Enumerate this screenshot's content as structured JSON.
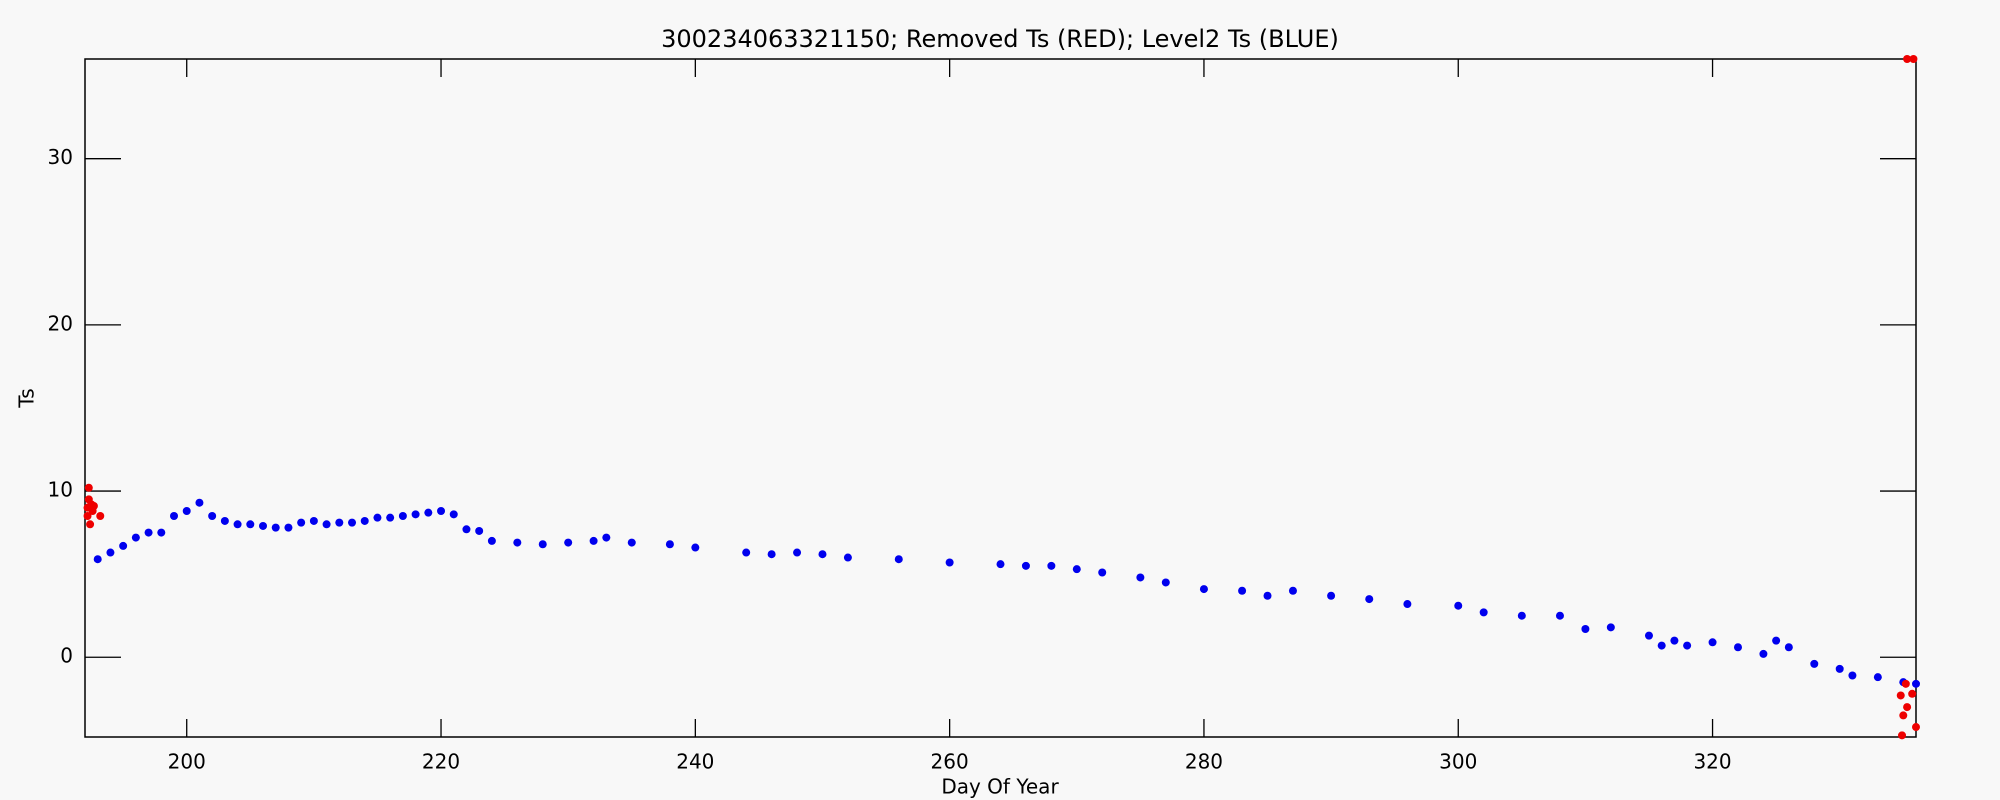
{
  "chart_data": {
    "type": "scatter",
    "title": "300234063321150; Removed Ts (RED); Level2 Ts (BLUE)",
    "x_label": "Day Of Year",
    "y_label": "Ts",
    "xlim": [
      192,
      336
    ],
    "ylim": [
      -4.8,
      36
    ],
    "xticks": [
      200,
      220,
      240,
      260,
      280,
      300,
      320
    ],
    "yticks": [
      0,
      10,
      20,
      30
    ],
    "series": [
      {
        "name": "Level2 Ts",
        "color": "#0000ee",
        "x": [
          193,
          194,
          195,
          196,
          197,
          198,
          199,
          200,
          201,
          202,
          203,
          204,
          205,
          206,
          207,
          208,
          209,
          210,
          211,
          212,
          213,
          214,
          215,
          216,
          217,
          218,
          219,
          220,
          221,
          222,
          223,
          224,
          226,
          228,
          230,
          232,
          233,
          235,
          238,
          240,
          244,
          246,
          248,
          250,
          252,
          256,
          260,
          264,
          266,
          268,
          270,
          272,
          275,
          277,
          280,
          283,
          285,
          287,
          290,
          293,
          296,
          300,
          302,
          305,
          308,
          310,
          312,
          315,
          316,
          317,
          318,
          320,
          322,
          324,
          325,
          326,
          328,
          330,
          331,
          333,
          335,
          336
        ],
        "values": [
          5.9,
          6.3,
          6.7,
          7.2,
          7.5,
          7.5,
          8.5,
          8.8,
          9.3,
          8.5,
          8.2,
          8.0,
          8.0,
          7.9,
          7.8,
          7.8,
          8.1,
          8.2,
          8.0,
          8.1,
          8.1,
          8.2,
          8.4,
          8.4,
          8.5,
          8.6,
          8.7,
          8.8,
          8.6,
          7.7,
          7.6,
          7.0,
          6.9,
          6.8,
          6.9,
          7.0,
          7.2,
          6.9,
          6.8,
          6.6,
          6.3,
          6.2,
          6.3,
          6.2,
          6.0,
          5.9,
          5.7,
          5.6,
          5.5,
          5.5,
          5.3,
          5.1,
          4.8,
          4.5,
          4.1,
          4.0,
          3.7,
          4.0,
          3.7,
          3.5,
          3.2,
          3.1,
          2.7,
          2.5,
          2.5,
          1.7,
          1.8,
          1.3,
          0.7,
          1.0,
          0.7,
          0.9,
          0.6,
          0.2,
          1.0,
          0.6,
          -0.4,
          -0.7,
          -1.1,
          -1.2,
          -1.5,
          -1.6
        ]
      },
      {
        "name": "Removed Ts",
        "color": "#ee0000",
        "x": [
          192.2,
          192.2,
          192.3,
          192.3,
          192.4,
          192.5,
          192.6,
          192.7,
          193.2,
          334.8,
          335,
          335.3,
          335.7,
          336,
          335.2,
          334.9,
          335.3,
          335.8
        ],
        "values": [
          8.5,
          9.0,
          9.5,
          10.2,
          8.0,
          9.2,
          8.8,
          9.1,
          8.5,
          -2.3,
          -3.5,
          -3.0,
          -2.2,
          -4.2,
          -1.6,
          -4.7,
          36,
          36
        ]
      }
    ]
  }
}
